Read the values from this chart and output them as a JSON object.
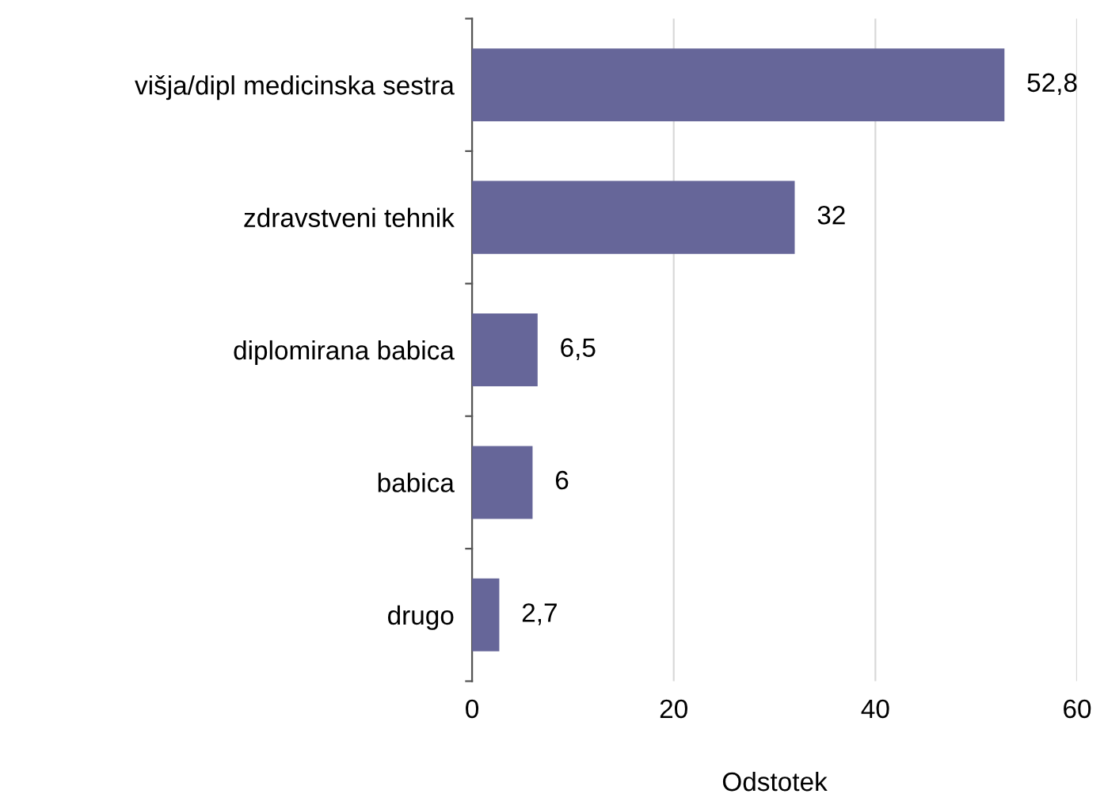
{
  "chart_data": {
    "type": "bar",
    "orientation": "horizontal",
    "xlabel": "Odstotek",
    "categories": [
      "višja/dipl medicinska sestra",
      "zdravstveni tehnik",
      "diplomirana babica",
      "babica",
      "drugo"
    ],
    "values": [
      52.8,
      32,
      6.5,
      6,
      2.7
    ],
    "value_labels": [
      "52,8",
      "32",
      "6,5",
      "6",
      "2,7"
    ],
    "color": "#666699",
    "xlim": [
      0,
      60
    ],
    "xticks": [
      0,
      20,
      40,
      60
    ],
    "grid": "x",
    "legend": false
  }
}
